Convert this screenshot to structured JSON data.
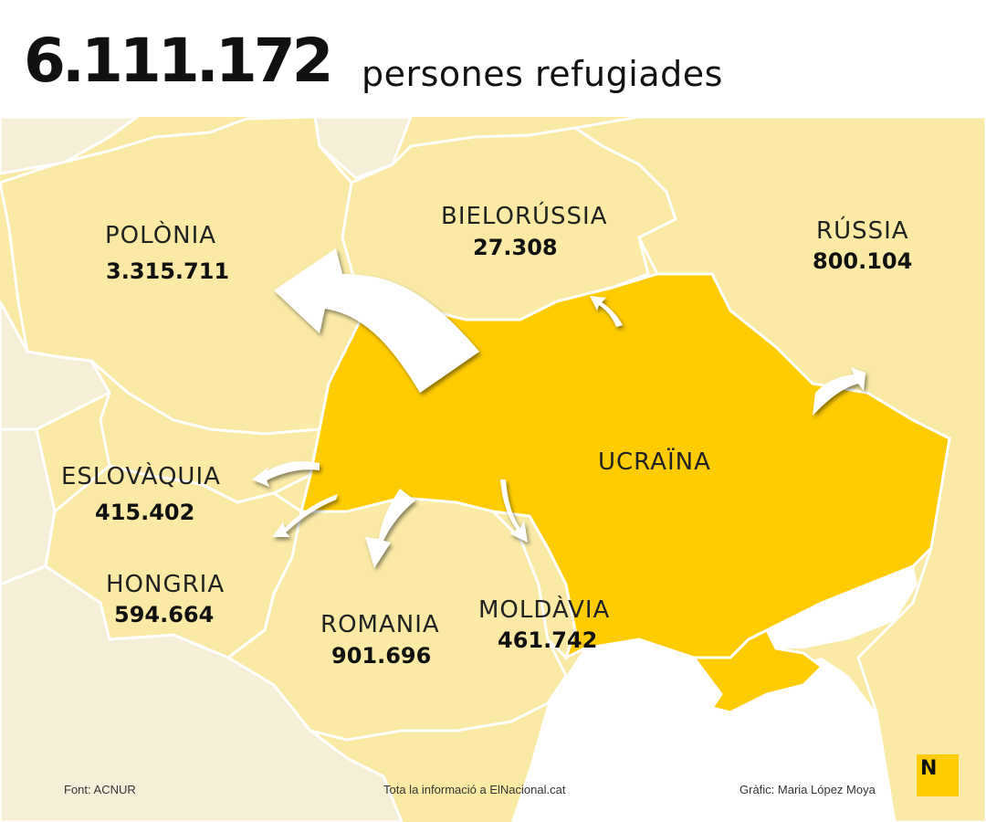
{
  "header": {
    "total": "6.111.172",
    "subtitle": "persones refugiades"
  },
  "countries": {
    "poland": {
      "name": "POLÒNIA",
      "value": "3.315.711"
    },
    "belarus": {
      "name": "BIELORÚSSIA",
      "value": "27.308"
    },
    "russia": {
      "name": "RÚSSIA",
      "value": "800.104"
    },
    "ukraine": {
      "name": "UCRAÏNA"
    },
    "slovakia": {
      "name": "ESLOVÀQUIA",
      "value": "415.402"
    },
    "hungary": {
      "name": "HONGRIA",
      "value": "594.664"
    },
    "romania": {
      "name": "ROMANIA",
      "value": "901.696"
    },
    "moldova": {
      "name": "MOLDÀVIA",
      "value": "461.742"
    }
  },
  "footer": {
    "source": "Font: ACNUR",
    "more_info": "Tota la informació a ElNacional.cat",
    "credit": "Gràfic: Maria López Moya",
    "logo_letter": "N"
  },
  "colors": {
    "ukraine": "#ffcc00",
    "neighbors": "#faeaa6",
    "distant_land": "#f6efd8",
    "sea": "#ffffff",
    "borders": "#ffffff",
    "arrows": "#ffffff",
    "logo": "#ffcc00"
  }
}
